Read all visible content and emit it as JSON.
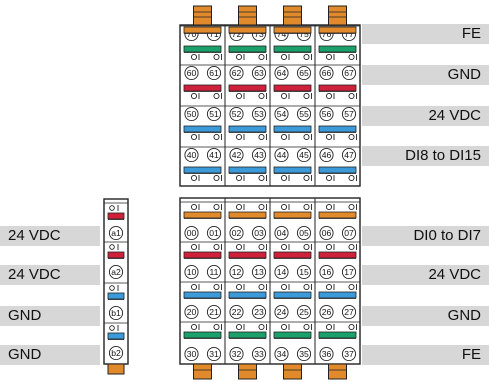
{
  "labels_right": [
    {
      "text": "FE"
    },
    {
      "text": "GND"
    },
    {
      "text": "24 VDC"
    },
    {
      "text": "DI8 to DI15"
    },
    {
      "text": "DI0 to DI7"
    },
    {
      "text": "24 VDC"
    },
    {
      "text": "GND"
    },
    {
      "text": "FE"
    }
  ],
  "labels_left": [
    {
      "text": "24 VDC"
    },
    {
      "text": "24 VDC"
    },
    {
      "text": "GND"
    },
    {
      "text": "GND"
    }
  ],
  "top_block_rows": [
    [
      "70",
      "71",
      "72",
      "73",
      "74",
      "75",
      "76",
      "77"
    ],
    [
      "60",
      "61",
      "62",
      "63",
      "64",
      "65",
      "66",
      "67"
    ],
    [
      "50",
      "51",
      "52",
      "53",
      "54",
      "55",
      "56",
      "57"
    ],
    [
      "40",
      "41",
      "42",
      "43",
      "44",
      "45",
      "46",
      "47"
    ]
  ],
  "bottom_block_rows": [
    [
      "00",
      "01",
      "02",
      "03",
      "04",
      "05",
      "06",
      "07"
    ],
    [
      "10",
      "11",
      "12",
      "13",
      "14",
      "15",
      "16",
      "17"
    ],
    [
      "20",
      "21",
      "22",
      "23",
      "24",
      "25",
      "26",
      "27"
    ],
    [
      "30",
      "31",
      "32",
      "33",
      "34",
      "35",
      "36",
      "37"
    ]
  ],
  "small_block_terminals": [
    "a1",
    "a2",
    "b1",
    "b2"
  ],
  "colors": {
    "fe": "#e08a2c",
    "gnd": "#1aa06a",
    "vdc": "#d0213a",
    "di": "#3d9ad8",
    "label_bar": "#d7d7d7"
  }
}
